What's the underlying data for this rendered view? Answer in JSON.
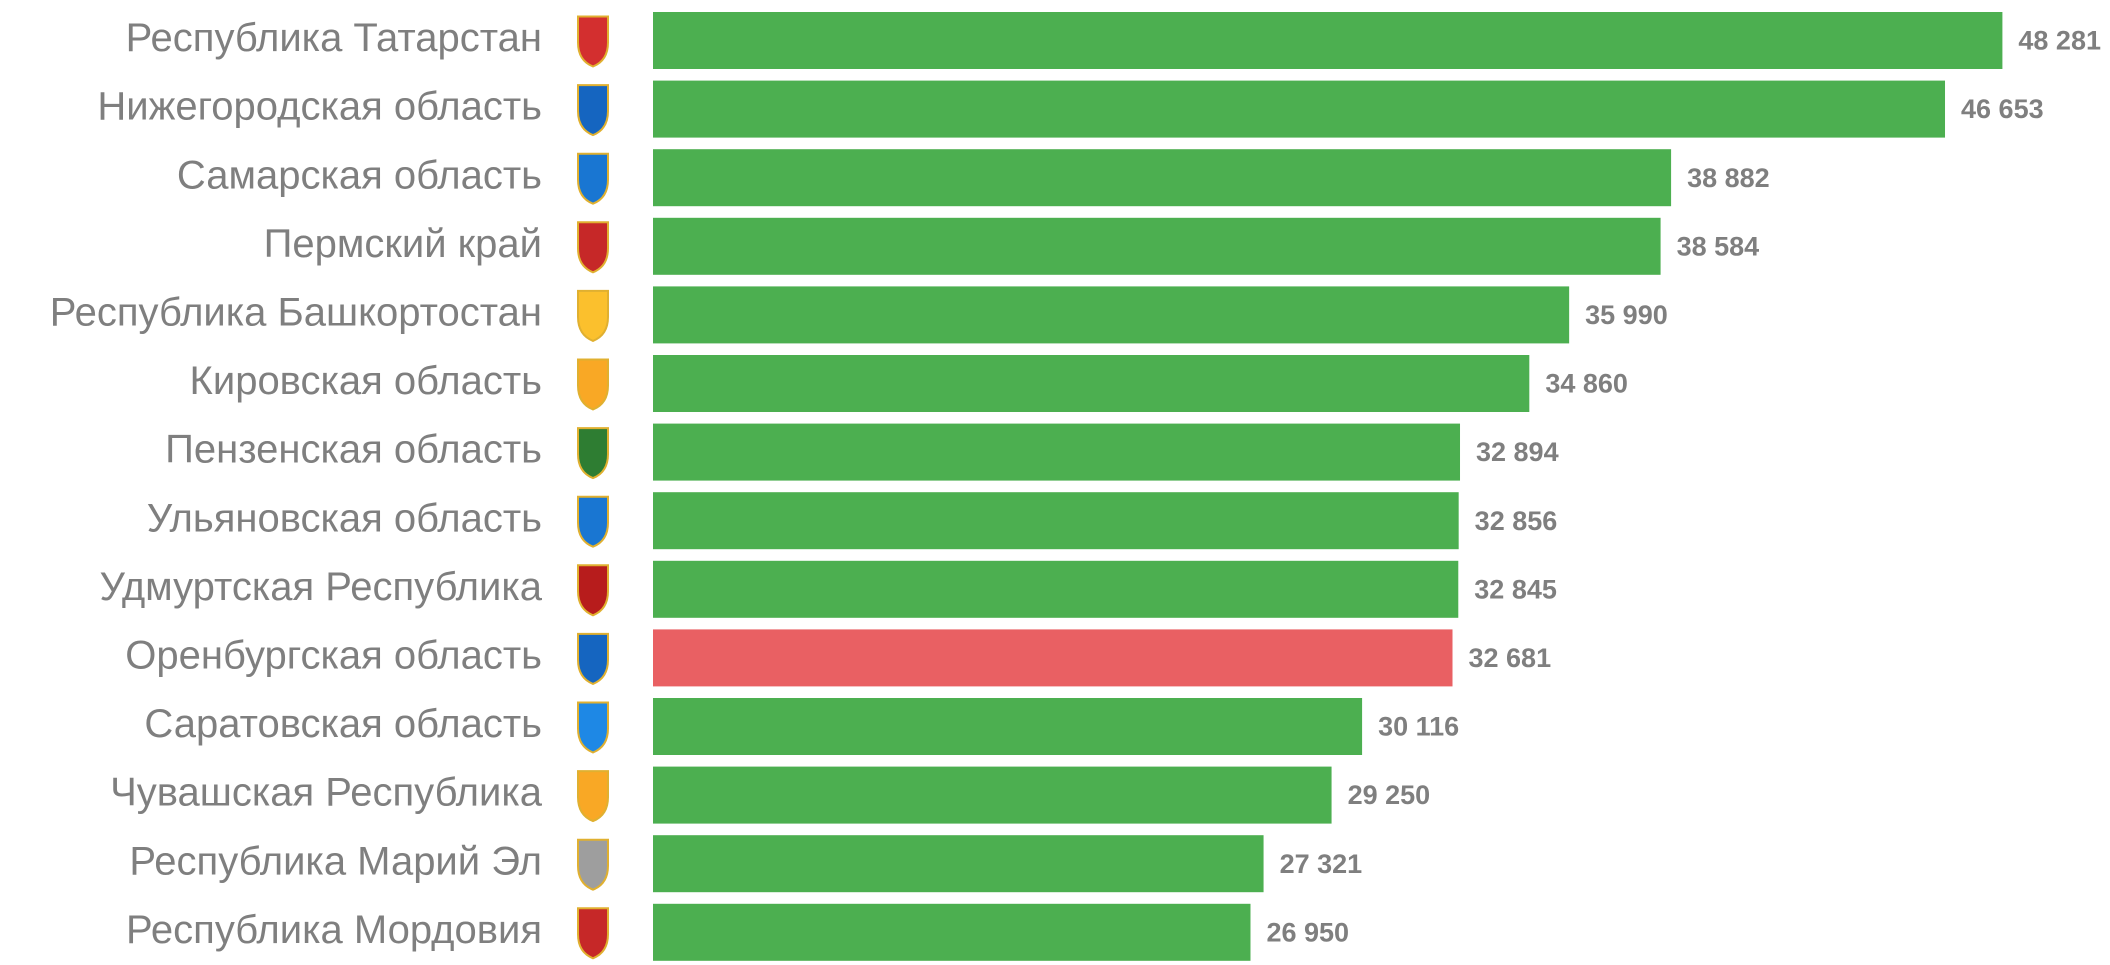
{
  "chart_data": {
    "type": "barh",
    "categories": [
      "Республика Татарстан",
      "Нижегородская область",
      "Самарская область",
      "Пермский край",
      "Республика Башкортостан",
      "Кировская область",
      "Пензенская область",
      "Ульяновская область",
      "Удмуртская Республика",
      "Оренбургская область",
      "Саратовская область",
      "Чувашская Республика",
      "Республика Марий Эл",
      "Республика Мордовия"
    ],
    "values": [
      48281,
      46653,
      38882,
      38584,
      35990,
      34860,
      32894,
      32856,
      32845,
      32681,
      30116,
      29250,
      27321,
      26950
    ],
    "value_labels": [
      "48 281",
      "46 653",
      "38 882",
      "38 584",
      "35 990",
      "34 860",
      "32 894",
      "32 856",
      "32 845",
      "32 681",
      "30 116",
      "29 250",
      "27 321",
      "26 950"
    ],
    "colors": [
      "#4caf50",
      "#4caf50",
      "#4caf50",
      "#4caf50",
      "#4caf50",
      "#4caf50",
      "#4caf50",
      "#4caf50",
      "#4caf50",
      "#e96063",
      "#4caf50",
      "#4caf50",
      "#4caf50",
      "#4caf50"
    ],
    "xlim": [
      10000,
      50000
    ]
  }
}
